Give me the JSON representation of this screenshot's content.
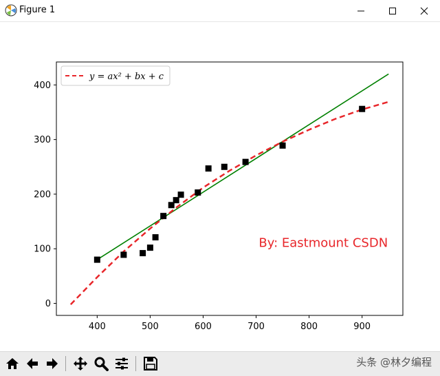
{
  "window": {
    "title": "Figure 1",
    "controls": [
      "minimize",
      "maximize",
      "close"
    ]
  },
  "toolbar": {
    "buttons": [
      "home-icon",
      "back-arrow-icon",
      "forward-arrow-icon",
      "pan-icon",
      "zoom-icon",
      "configure-subplots-icon",
      "save-icon"
    ],
    "watermark": "头条 @林夕编程"
  },
  "chart_data": {
    "type": "scatter",
    "title": "",
    "xlabel": "",
    "ylabel": "",
    "xlim": [
      323,
      977
    ],
    "ylim": [
      -22,
      442
    ],
    "x_ticks": [
      400,
      500,
      600,
      700,
      800,
      900
    ],
    "y_ticks": [
      0,
      100,
      200,
      300,
      400
    ],
    "grid": false,
    "legend": {
      "position": "upper-left",
      "entries": [
        "y = ax² + bx + c"
      ]
    },
    "annotation": "By:  Eastmount CSDN",
    "series": [
      {
        "kind": "points",
        "marker": "square",
        "color": "#000000",
        "x": [
          400,
          450,
          486,
          500,
          510,
          525,
          540,
          549,
          558,
          590,
          610,
          640,
          680,
          750,
          900
        ],
        "y": [
          80,
          89,
          92,
          102,
          121,
          160,
          180,
          189,
          199,
          203,
          247,
          250,
          259,
          289,
          356
        ]
      },
      {
        "kind": "line",
        "color": "#008000",
        "style": "solid",
        "x": [
          400,
          950
        ],
        "y": [
          80,
          420
        ]
      },
      {
        "kind": "line",
        "name": "y = ax² + bx + c",
        "color": "#e8262a",
        "style": "dashed",
        "x": [
          350,
          400,
          450,
          500,
          550,
          600,
          650,
          700,
          750,
          800,
          850,
          900,
          950
        ],
        "y": [
          -2,
          48,
          95,
          137,
          176,
          212,
          243,
          271,
          296,
          318,
          338,
          355,
          369
        ]
      }
    ]
  }
}
